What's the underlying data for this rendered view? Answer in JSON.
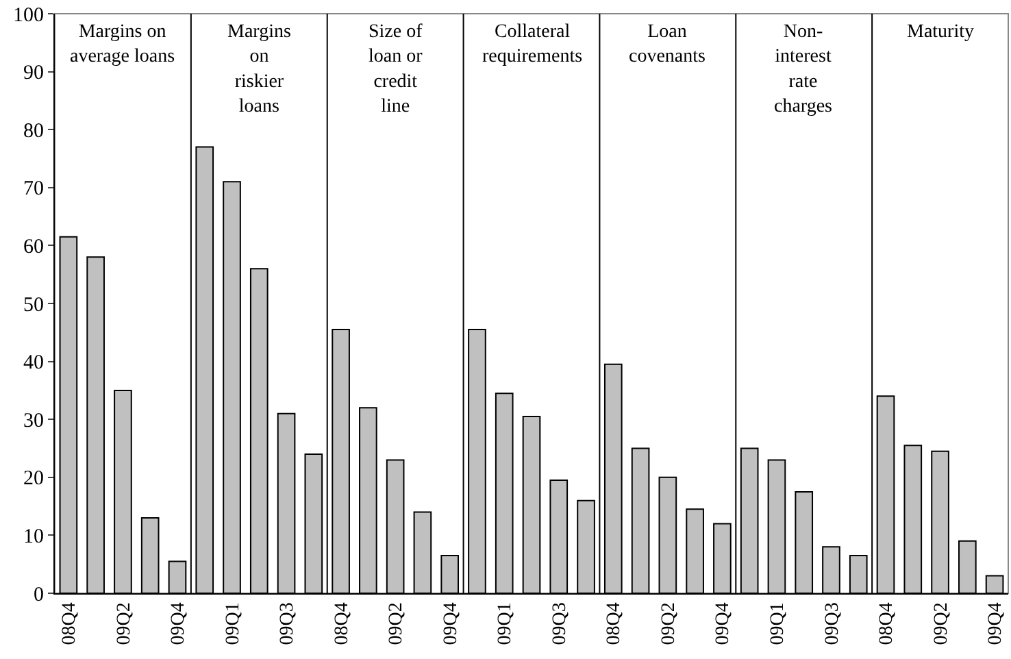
{
  "chart_data": {
    "type": "bar",
    "categories": [
      "08Q4",
      null,
      "09Q2",
      null,
      "09Q4",
      null,
      "09Q1",
      null,
      "09Q3",
      null,
      "08Q4",
      null,
      "09Q2",
      null,
      "09Q4",
      null,
      "09Q1",
      null,
      "09Q3",
      null,
      "08Q4",
      null,
      "09Q2",
      null,
      "09Q4",
      null,
      "09Q1",
      null,
      "09Q3",
      null,
      "08Q4",
      null,
      "09Q2",
      null,
      "09Q4"
    ],
    "values": [
      61.5,
      58,
      35,
      13,
      5.5,
      77,
      71,
      56,
      31,
      24,
      45.5,
      32,
      23,
      14,
      6.5,
      45.5,
      34.5,
      30.5,
      19.5,
      16,
      39.5,
      25,
      20,
      14.5,
      12,
      25,
      23,
      17.5,
      8,
      6.5,
      34,
      25.5,
      24.5,
      9,
      3
    ],
    "color": "#c0c0c0",
    "ylim": [
      0,
      100
    ],
    "yticks": [
      0,
      10,
      20,
      30,
      40,
      50,
      60,
      70,
      80,
      90,
      100
    ],
    "grid": false,
    "annotations": [
      "Margins on\naverage loans",
      "Margins\non\nriskier\nloans",
      "Size of\nloan or\ncredit\nline",
      "Collateral\nrequirements",
      "Loan\ncovenants",
      "Non-\ninterest\nrate\ncharges",
      "Maturity"
    ]
  }
}
